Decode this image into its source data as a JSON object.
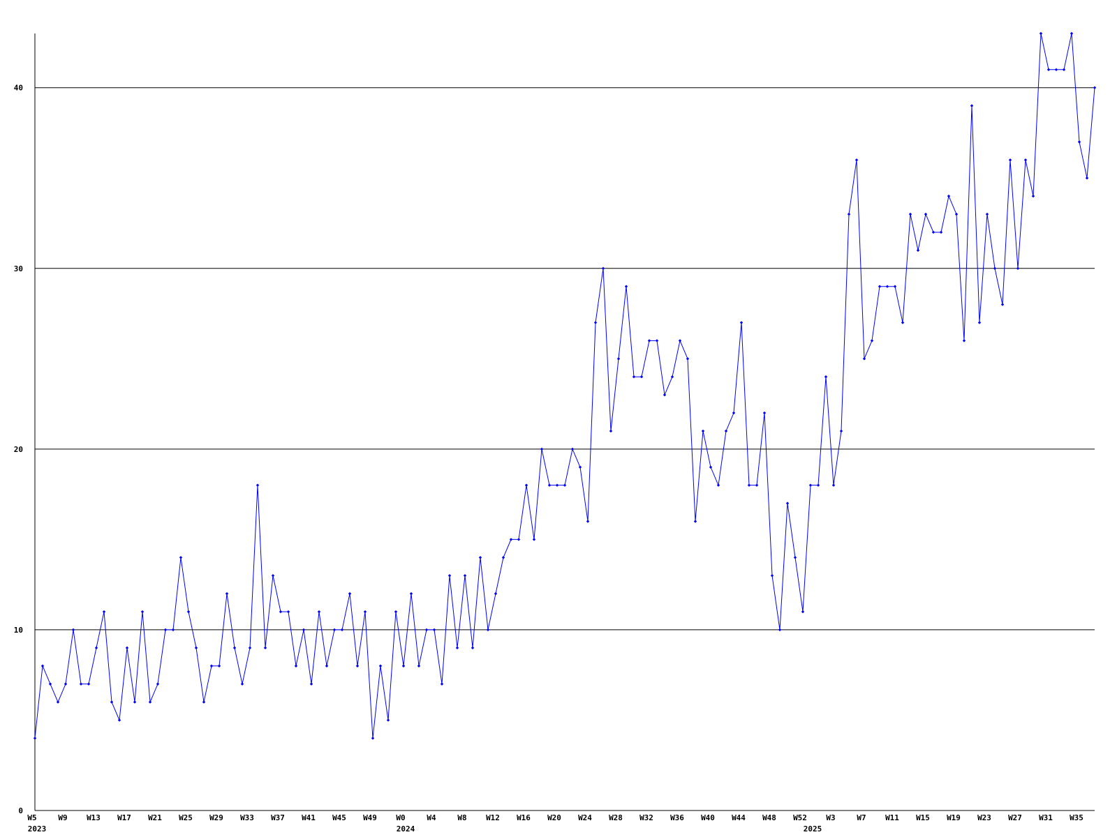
{
  "chart_data": {
    "type": "line",
    "title": "",
    "xlabel": "",
    "ylabel": "",
    "ylim": [
      0,
      43
    ],
    "y_ticks": [
      "0",
      "10",
      "20",
      "30",
      "40"
    ],
    "grid": "horizontal",
    "legend": "none",
    "colors": {
      "line": "#0000ff",
      "grid": "#000000",
      "axis": "#000000"
    },
    "x_tick_labels": [
      {
        "label": "W5",
        "index": 0
      },
      {
        "label": "W9",
        "index": 4
      },
      {
        "label": "W13",
        "index": 8
      },
      {
        "label": "W17",
        "index": 12
      },
      {
        "label": "W21",
        "index": 16
      },
      {
        "label": "W25",
        "index": 20
      },
      {
        "label": "W29",
        "index": 24
      },
      {
        "label": "W33",
        "index": 28
      },
      {
        "label": "W37",
        "index": 32
      },
      {
        "label": "W41",
        "index": 36
      },
      {
        "label": "W45",
        "index": 40
      },
      {
        "label": "W49",
        "index": 44
      },
      {
        "label": "W0",
        "index": 48
      },
      {
        "label": "W4",
        "index": 52
      },
      {
        "label": "W8",
        "index": 56
      },
      {
        "label": "W12",
        "index": 60
      },
      {
        "label": "W16",
        "index": 64
      },
      {
        "label": "W20",
        "index": 68
      },
      {
        "label": "W24",
        "index": 72
      },
      {
        "label": "W28",
        "index": 76
      },
      {
        "label": "W32",
        "index": 80
      },
      {
        "label": "W36",
        "index": 84
      },
      {
        "label": "W40",
        "index": 88
      },
      {
        "label": "W44",
        "index": 92
      },
      {
        "label": "W48",
        "index": 96
      },
      {
        "label": "W52",
        "index": 100
      },
      {
        "label": "W3",
        "index": 104
      },
      {
        "label": "W7",
        "index": 108
      },
      {
        "label": "W11",
        "index": 112
      },
      {
        "label": "W15",
        "index": 116
      },
      {
        "label": "W19",
        "index": 120
      },
      {
        "label": "W23",
        "index": 124
      },
      {
        "label": "W27",
        "index": 128
      },
      {
        "label": "W31",
        "index": 132
      },
      {
        "label": "W35",
        "index": 136
      }
    ],
    "year_labels": [
      {
        "label": "2023",
        "index": 0
      },
      {
        "label": "2024",
        "index": 48
      },
      {
        "label": "2025",
        "index": 101
      }
    ],
    "series": [
      {
        "values": [
          4,
          8,
          7,
          6,
          7,
          10,
          7,
          7,
          9,
          11,
          6,
          5,
          9,
          6,
          11,
          6,
          7,
          10,
          10,
          14,
          11,
          9,
          6,
          8,
          8,
          12,
          9,
          7,
          9,
          18,
          9,
          13,
          11,
          11,
          8,
          10,
          7,
          11,
          8,
          10,
          10,
          12,
          8,
          11,
          4,
          8,
          5,
          11,
          8,
          12,
          8,
          10,
          10,
          7,
          13,
          9,
          13,
          9,
          14,
          10,
          12,
          14,
          15,
          15,
          18,
          15,
          20,
          18,
          18,
          18,
          20,
          19,
          16,
          27,
          30,
          21,
          25,
          29,
          24,
          24,
          26,
          26,
          23,
          24,
          26,
          25,
          16,
          21,
          19,
          18,
          21,
          22,
          27,
          18,
          18,
          22,
          13,
          10,
          17,
          14,
          11,
          18,
          18,
          24,
          18,
          21,
          33,
          36,
          25,
          26,
          29,
          29,
          29,
          27,
          33,
          31,
          33,
          32,
          32,
          34,
          33,
          26,
          39,
          27,
          33,
          30,
          28,
          36,
          30,
          36,
          34,
          43,
          41,
          41,
          41,
          43,
          37,
          35,
          40
        ]
      }
    ]
  }
}
